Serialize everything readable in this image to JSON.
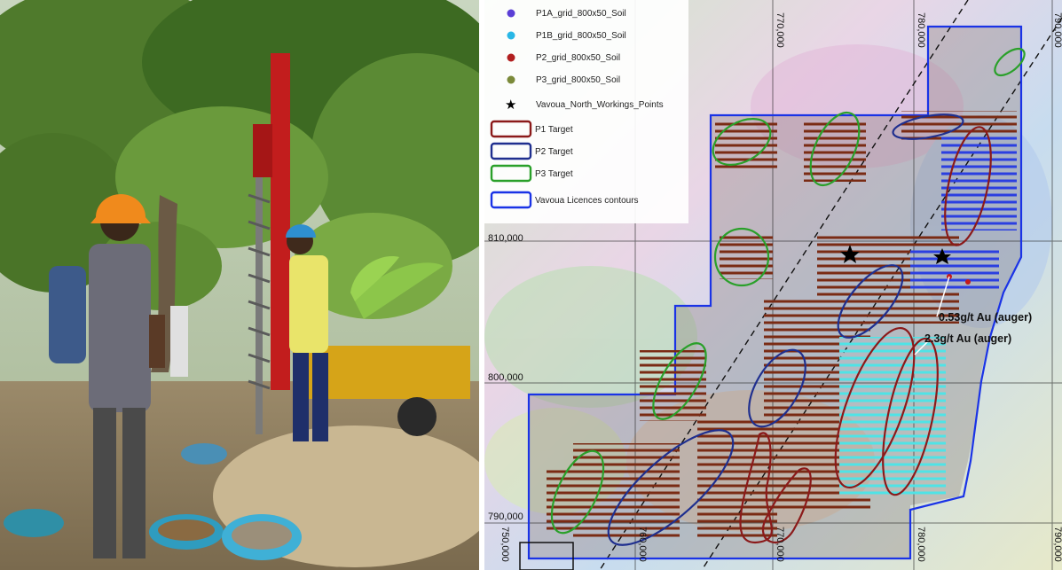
{
  "photo": {
    "description_icon": "auger-drill-photo-icon"
  },
  "map": {
    "grid_labels": {
      "top": [
        "770,000",
        "780,000",
        "790,000"
      ],
      "bottom": [
        "750,000",
        "760,000",
        "770,000",
        "780,000",
        "790,000"
      ],
      "left": [
        "810,000",
        "800,000",
        "790,000"
      ]
    },
    "legend": [
      {
        "label": "P1A_grid_800x50_Soil",
        "symbol": "dot",
        "color": "#5b3fd6"
      },
      {
        "label": "P1B_grid_800x50_Soil",
        "symbol": "dot",
        "color": "#29b7e6"
      },
      {
        "label": "P2_grid_800x50_Soil",
        "symbol": "dot",
        "color": "#b21f1f"
      },
      {
        "label": "P3_grid_800x50_Soil",
        "symbol": "dot",
        "color": "#7b8a3a"
      },
      {
        "label": "Vavoua_North_Workings_Points",
        "symbol": "star",
        "color": "#000000"
      },
      {
        "label": "P1 Target",
        "symbol": "box",
        "color": "#8b1a1a"
      },
      {
        "label": "P2 Target",
        "symbol": "box",
        "color": "#1f2f8f"
      },
      {
        "label": "P3 Target",
        "symbol": "box",
        "color": "#2aa02a"
      },
      {
        "label": "Vavoua Licences contours",
        "symbol": "box",
        "color": "#1a33e6"
      }
    ],
    "annotations": [
      "0.53g/t Au (auger)",
      "2.3g/t Au (auger)"
    ]
  }
}
